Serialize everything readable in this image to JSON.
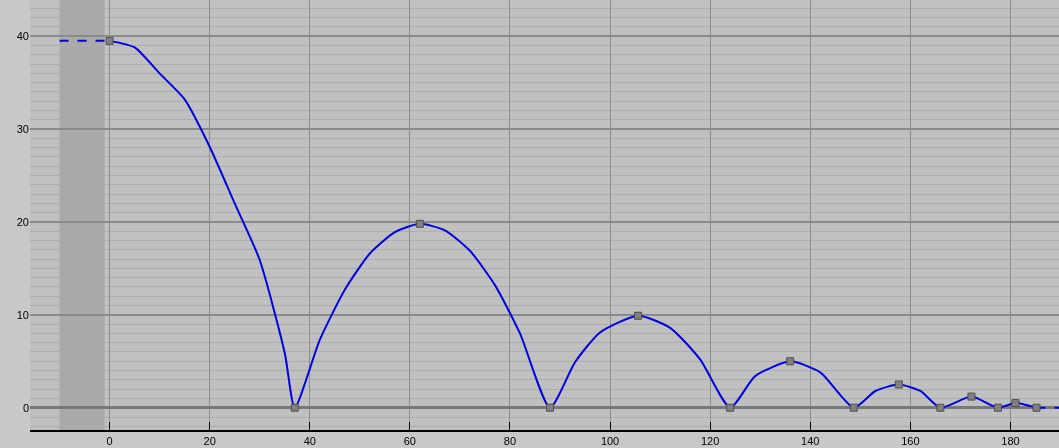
{
  "chart_data": {
    "type": "line",
    "xlim": [
      -15.9,
      189.7
    ],
    "ylim": [
      -2.4,
      43.9
    ],
    "xticks": [
      0,
      20,
      40,
      60,
      80,
      100,
      120,
      140,
      160,
      180
    ],
    "yticks": [
      0,
      10,
      20,
      30,
      40
    ],
    "grid": true,
    "bands": [
      {
        "axis": "x",
        "from": -10,
        "to": -1,
        "color": "#a9a9a9"
      }
    ],
    "series": [
      {
        "color": "#0000dd",
        "line_style": "solid",
        "marker": "none",
        "x": [
          0,
          5,
          10,
          15,
          20,
          25,
          30,
          35,
          37,
          42,
          47,
          52,
          57,
          62,
          67,
          72,
          77,
          82,
          88,
          93,
          98,
          105.6,
          112,
          118,
          124,
          129,
          136,
          142,
          148.7,
          153,
          157.7,
          162,
          166,
          172.2,
          177.5,
          181,
          185.2
        ],
        "values": [
          39.5,
          38.8,
          36.0,
          33.2,
          28.1,
          22.0,
          15.9,
          5.9,
          0,
          7.3,
          12.7,
          16.6,
          18.9,
          19.8,
          19.1,
          16.9,
          13.2,
          8.0,
          0,
          4.9,
          8.1,
          9.9,
          8.6,
          5.2,
          0,
          3.4,
          5.0,
          3.8,
          0,
          1.8,
          2.5,
          1.8,
          0,
          1.2,
          0,
          0.5,
          0
        ]
      },
      {
        "color": "#0000dd",
        "line_style": "dashed",
        "marker": "none",
        "x": [
          -10,
          0
        ],
        "values": [
          39.5,
          39.5
        ]
      },
      {
        "color": "#0000dd",
        "line_style": "dashed",
        "marker": "none",
        "x": [
          185.2,
          189.7
        ],
        "values": [
          0,
          0
        ]
      },
      {
        "type": "scatter",
        "color": "#808080",
        "marker": "square",
        "x": [
          0,
          37,
          62,
          88,
          105.6,
          124,
          136,
          148.7,
          157.7,
          166,
          172.2,
          177.5,
          181,
          185.2
        ],
        "values": [
          39.5,
          0,
          19.8,
          0,
          9.9,
          0,
          5.0,
          0,
          2.5,
          0,
          1.2,
          0,
          0.5,
          0
        ]
      }
    ]
  }
}
